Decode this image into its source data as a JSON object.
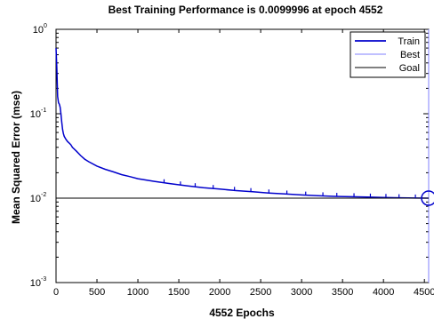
{
  "chart_data": {
    "type": "line",
    "title": "Best Training Performance is 0.0099996 at epoch 4552",
    "xlabel": "4552 Epochs",
    "ylabel": "Mean Squared Error  (mse)",
    "xlim": [
      0,
      4552
    ],
    "ylim": [
      0.001,
      1
    ],
    "yscale": "log",
    "x_ticks": [
      0,
      500,
      1000,
      1500,
      2000,
      2500,
      3000,
      3500,
      4000,
      4500
    ],
    "y_ticks": [
      {
        "base": "10",
        "exp": "0",
        "value": 1
      },
      {
        "base": "10",
        "exp": "-1",
        "value": 0.1
      },
      {
        "base": "10",
        "exp": "-2",
        "value": 0.01
      },
      {
        "base": "10",
        "exp": "-3",
        "value": 0.001
      }
    ],
    "grid": false,
    "legend": [
      "Train",
      "Best",
      "Goal"
    ],
    "legend_position": "top-right",
    "series": [
      {
        "name": "Train",
        "color": "#0000cc",
        "x": [
          0,
          10,
          20,
          30,
          40,
          50,
          60,
          70,
          80,
          90,
          100,
          120,
          140,
          160,
          180,
          200,
          250,
          300,
          350,
          400,
          500,
          600,
          700,
          800,
          900,
          1000,
          1200,
          1400,
          1600,
          1800,
          2000,
          2200,
          2400,
          2600,
          2800,
          3000,
          3200,
          3400,
          3600,
          3800,
          4000,
          4200,
          4400,
          4552
        ],
        "y": [
          0.6,
          0.35,
          0.16,
          0.135,
          0.13,
          0.12,
          0.1,
          0.08,
          0.065,
          0.058,
          0.054,
          0.05,
          0.047,
          0.045,
          0.043,
          0.04,
          0.036,
          0.032,
          0.029,
          0.027,
          0.024,
          0.022,
          0.0205,
          0.019,
          0.018,
          0.017,
          0.0158,
          0.0148,
          0.014,
          0.0133,
          0.0128,
          0.0123,
          0.0119,
          0.0115,
          0.0112,
          0.0109,
          0.0107,
          0.0105,
          0.0104,
          0.0103,
          0.0102,
          0.0101,
          0.01002,
          0.0099996
        ]
      },
      {
        "name": "Best",
        "color": "#8080ff",
        "x": [
          0,
          4552
        ],
        "y": [
          0.0099996,
          0.0099996
        ]
      },
      {
        "name": "Goal",
        "color": "#000000",
        "x": [
          0,
          4552
        ],
        "y": [
          0.01,
          0.01
        ]
      }
    ],
    "best_point": {
      "x": 4552,
      "y": 0.0099996
    }
  }
}
